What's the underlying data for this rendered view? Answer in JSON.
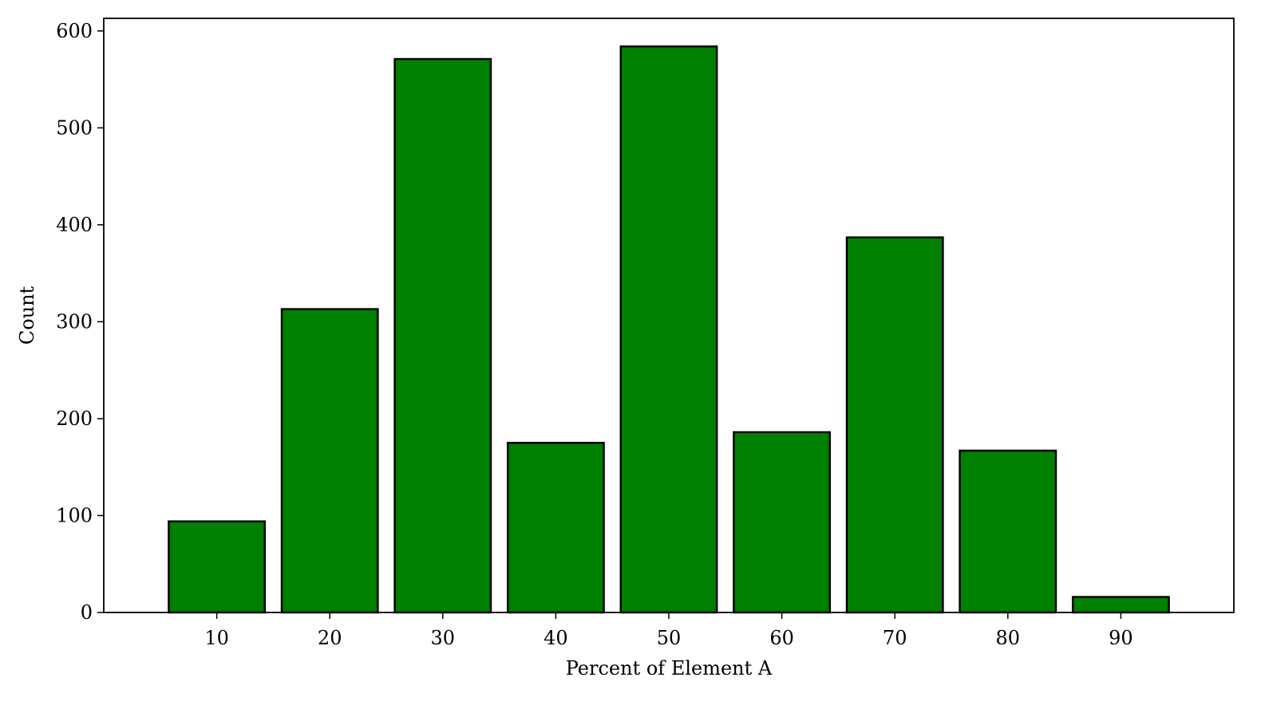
{
  "chart_data": {
    "type": "bar",
    "categories": [
      "10",
      "20",
      "30",
      "40",
      "50",
      "60",
      "70",
      "80",
      "90"
    ],
    "x": [
      10,
      20,
      30,
      40,
      50,
      60,
      70,
      80,
      90
    ],
    "values": [
      94,
      313,
      571,
      175,
      584,
      186,
      387,
      167,
      16
    ],
    "xlabel": "Percent of Element A",
    "ylabel": "Count",
    "xlim": [
      0,
      100
    ],
    "ylim": [
      0,
      613
    ],
    "yticks": [
      0,
      100,
      200,
      300,
      400,
      500,
      600
    ],
    "bar_width": 8.5,
    "grid": false,
    "colors": {
      "bar_fill": "#008000",
      "bar_edge": "#000000",
      "axis": "#000000",
      "background": "#ffffff"
    }
  }
}
